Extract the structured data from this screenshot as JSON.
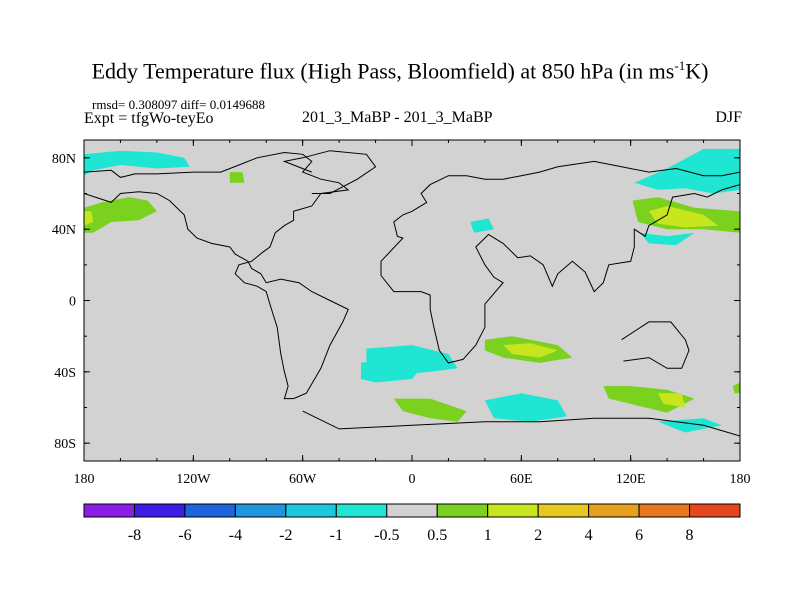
{
  "chart_data": {
    "type": "contour-map",
    "title_main": "Eddy Temperature flux (High Pass, Bloomfield) at 850 hPa (in ms",
    "title_sup": "-1",
    "title_end": "K)",
    "stats": "rmsd= 0.308097  diff= 0.0149688",
    "expt": "Expt = tfgWo-teyEo",
    "center_label": "201_3_MaBP - 201_3_MaBP",
    "season": "DJF",
    "xlim": [
      -180,
      180
    ],
    "ylim": [
      -90,
      90
    ],
    "x_ticks": [
      {
        "value": -180,
        "label": "180"
      },
      {
        "value": -120,
        "label": "120W"
      },
      {
        "value": -60,
        "label": "60W"
      },
      {
        "value": 0,
        "label": "0"
      },
      {
        "value": 60,
        "label": "60E"
      },
      {
        "value": 120,
        "label": "120E"
      },
      {
        "value": 180,
        "label": "180"
      }
    ],
    "y_ticks": [
      {
        "value": 80,
        "label": "80N"
      },
      {
        "value": 40,
        "label": "40N"
      },
      {
        "value": 0,
        "label": "0"
      },
      {
        "value": -40,
        "label": "40S"
      },
      {
        "value": -80,
        "label": "80S"
      }
    ],
    "colorbar": {
      "colors": [
        "#8a1ee6",
        "#3a1ee6",
        "#1e64dc",
        "#1e96dc",
        "#1ec8dc",
        "#1ee6d2",
        "#d2d2d2",
        "#7ad21e",
        "#c8e61e",
        "#e6c81e",
        "#e6a01e",
        "#e6781e",
        "#e6461e"
      ],
      "labels": [
        "-8",
        "-6",
        "-4",
        "-2",
        "-1",
        "-0.5",
        "0.5",
        "1",
        "2",
        "4",
        "6",
        "8"
      ]
    },
    "regions": [
      {
        "name": "north-pacific-east-cyan",
        "level": "-0.5",
        "pts": [
          [
            -180,
            82
          ],
          [
            -160,
            84
          ],
          [
            -140,
            83
          ],
          [
            -125,
            80
          ],
          [
            -122,
            75
          ],
          [
            -140,
            74
          ],
          [
            -160,
            76
          ],
          [
            -175,
            73
          ],
          [
            -180,
            70
          ]
        ]
      },
      {
        "name": "north-pacific-band-green",
        "level": "0.5",
        "pts": [
          [
            -180,
            52
          ],
          [
            -170,
            55
          ],
          [
            -155,
            58
          ],
          [
            -145,
            56
          ],
          [
            -140,
            50
          ],
          [
            -150,
            45
          ],
          [
            -165,
            44
          ],
          [
            -175,
            38
          ],
          [
            -180,
            38
          ]
        ]
      },
      {
        "name": "north-pacific-core-yellow",
        "level": "1",
        "pts": [
          [
            -180,
            50
          ],
          [
            -176,
            50
          ],
          [
            -175,
            44
          ],
          [
            -180,
            42
          ]
        ]
      },
      {
        "name": "kamchatka-green",
        "level": "0.5",
        "pts": [
          [
            -100,
            72
          ],
          [
            -93,
            72
          ],
          [
            -92,
            66
          ],
          [
            -100,
            66
          ]
        ]
      },
      {
        "name": "arctic-east-cyan",
        "level": "-0.5",
        "pts": [
          [
            122,
            66
          ],
          [
            140,
            74
          ],
          [
            160,
            85
          ],
          [
            180,
            85
          ],
          [
            180,
            62
          ],
          [
            165,
            60
          ],
          [
            150,
            63
          ],
          [
            135,
            62
          ]
        ]
      },
      {
        "name": "asia-pacific-green",
        "level": "0.5",
        "pts": [
          [
            121,
            56
          ],
          [
            135,
            58
          ],
          [
            155,
            52
          ],
          [
            180,
            50
          ],
          [
            180,
            38
          ],
          [
            160,
            40
          ],
          [
            140,
            40
          ],
          [
            124,
            44
          ]
        ]
      },
      {
        "name": "asia-pacific-core-yellow",
        "level": "1",
        "pts": [
          [
            130,
            50
          ],
          [
            140,
            53
          ],
          [
            160,
            48
          ],
          [
            168,
            42
          ],
          [
            150,
            41
          ],
          [
            135,
            43
          ]
        ]
      },
      {
        "name": "japan-cyan",
        "level": "-0.5",
        "pts": [
          [
            125,
            38
          ],
          [
            140,
            36
          ],
          [
            155,
            38
          ],
          [
            145,
            31
          ],
          [
            130,
            32
          ]
        ]
      },
      {
        "name": "iberia-cyan",
        "level": "-0.5",
        "pts": [
          [
            32,
            44
          ],
          [
            42,
            46
          ],
          [
            45,
            40
          ],
          [
            34,
            38
          ]
        ]
      },
      {
        "name": "south-indian-green",
        "level": "0.5",
        "pts": [
          [
            40,
            -22
          ],
          [
            55,
            -20
          ],
          [
            80,
            -25
          ],
          [
            88,
            -32
          ],
          [
            70,
            -35
          ],
          [
            50,
            -32
          ],
          [
            40,
            -28
          ]
        ]
      },
      {
        "name": "south-indian-core-yellow",
        "level": "1",
        "pts": [
          [
            50,
            -25
          ],
          [
            65,
            -24
          ],
          [
            80,
            -28
          ],
          [
            70,
            -32
          ],
          [
            55,
            -30
          ]
        ]
      },
      {
        "name": "south-atlantic-cyan",
        "level": "-0.5",
        "pts": [
          [
            -25,
            -27
          ],
          [
            0,
            -25
          ],
          [
            20,
            -30
          ],
          [
            25,
            -38
          ],
          [
            10,
            -40
          ],
          [
            -10,
            -42
          ],
          [
            -25,
            -40
          ]
        ]
      },
      {
        "name": "south-america-tip-cyan",
        "level": "-0.5",
        "pts": [
          [
            -28,
            -35
          ],
          [
            -10,
            -32
          ],
          [
            5,
            -38
          ],
          [
            0,
            -44
          ],
          [
            -20,
            -46
          ],
          [
            -28,
            -44
          ]
        ]
      },
      {
        "name": "south-atlantic-green",
        "level": "0.5",
        "pts": [
          [
            -10,
            -55
          ],
          [
            10,
            -55
          ],
          [
            30,
            -62
          ],
          [
            25,
            -68
          ],
          [
            10,
            -66
          ],
          [
            -5,
            -62
          ]
        ]
      },
      {
        "name": "south-atlantic-deep-cyan",
        "level": "-0.5",
        "pts": [
          [
            40,
            -56
          ],
          [
            60,
            -52
          ],
          [
            80,
            -56
          ],
          [
            85,
            -65
          ],
          [
            65,
            -68
          ],
          [
            45,
            -66
          ]
        ]
      },
      {
        "name": "south-ocean-green-east",
        "level": "0.5",
        "pts": [
          [
            105,
            -48
          ],
          [
            120,
            -48
          ],
          [
            140,
            -50
          ],
          [
            155,
            -55
          ],
          [
            140,
            -63
          ],
          [
            120,
            -58
          ],
          [
            108,
            -55
          ]
        ]
      },
      {
        "name": "south-ocean-core-yellow",
        "level": "1",
        "pts": [
          [
            135,
            -52
          ],
          [
            148,
            -52
          ],
          [
            150,
            -60
          ],
          [
            138,
            -58
          ]
        ]
      },
      {
        "name": "south-ocean-cyan-east",
        "level": "-0.5",
        "pts": [
          [
            135,
            -68
          ],
          [
            160,
            -66
          ],
          [
            170,
            -70
          ],
          [
            150,
            -74
          ]
        ]
      },
      {
        "name": "dateline-south-green",
        "level": "0.5",
        "pts": [
          [
            176,
            -48
          ],
          [
            180,
            -46
          ],
          [
            180,
            -52
          ],
          [
            177,
            -52
          ]
        ]
      }
    ],
    "outlines": [
      {
        "name": "americas-outline",
        "pts": [
          [
            -180,
            72
          ],
          [
            -165,
            73
          ],
          [
            -160,
            69
          ],
          [
            -152,
            71
          ],
          [
            -140,
            71
          ],
          [
            -120,
            72
          ],
          [
            -105,
            72
          ],
          [
            -95,
            76
          ],
          [
            -85,
            80
          ],
          [
            -70,
            83
          ],
          [
            -60,
            82
          ],
          [
            -55,
            78
          ],
          [
            -60,
            72
          ],
          [
            -50,
            68
          ],
          [
            -40,
            66
          ],
          [
            -35,
            62
          ],
          [
            -50,
            60
          ],
          [
            -55,
            53
          ],
          [
            -65,
            50
          ],
          [
            -65,
            45
          ],
          [
            -70,
            42
          ],
          [
            -75,
            38
          ],
          [
            -78,
            30
          ],
          [
            -82,
            27
          ],
          [
            -88,
            22
          ],
          [
            -95,
            20
          ],
          [
            -97,
            15
          ],
          [
            -92,
            10
          ],
          [
            -85,
            8
          ],
          [
            -80,
            5
          ],
          [
            -78,
            -2
          ],
          [
            -74,
            -15
          ],
          [
            -72,
            -30
          ],
          [
            -70,
            -40
          ],
          [
            -68,
            -48
          ],
          [
            -70,
            -55
          ],
          [
            -65,
            -55
          ],
          [
            -58,
            -52
          ],
          [
            -50,
            -38
          ],
          [
            -45,
            -25
          ],
          [
            -38,
            -12
          ],
          [
            -35,
            -5
          ],
          [
            -45,
            0
          ],
          [
            -55,
            5
          ],
          [
            -62,
            10
          ],
          [
            -72,
            12
          ],
          [
            -80,
            10
          ],
          [
            -83,
            15
          ],
          [
            -88,
            18
          ],
          [
            -90,
            22
          ],
          [
            -97,
            26
          ],
          [
            -100,
            30
          ],
          [
            -110,
            32
          ],
          [
            -118,
            35
          ],
          [
            -123,
            40
          ],
          [
            -125,
            48
          ],
          [
            -133,
            56
          ],
          [
            -140,
            60
          ],
          [
            -150,
            61
          ],
          [
            -160,
            60
          ],
          [
            -165,
            55
          ],
          [
            -180,
            60
          ]
        ]
      },
      {
        "name": "eurasia-africa-outline",
        "pts": [
          [
            180,
            72
          ],
          [
            170,
            70
          ],
          [
            160,
            70
          ],
          [
            145,
            74
          ],
          [
            130,
            72
          ],
          [
            115,
            75
          ],
          [
            100,
            78
          ],
          [
            80,
            75
          ],
          [
            70,
            72
          ],
          [
            60,
            70
          ],
          [
            50,
            68
          ],
          [
            40,
            68
          ],
          [
            30,
            70
          ],
          [
            20,
            70
          ],
          [
            10,
            65
          ],
          [
            5,
            60
          ],
          [
            8,
            55
          ],
          [
            0,
            50
          ],
          [
            -5,
            48
          ],
          [
            -10,
            44
          ],
          [
            -8,
            36
          ],
          [
            -5,
            35
          ],
          [
            -17,
            22
          ],
          [
            -17,
            14
          ],
          [
            -10,
            5
          ],
          [
            5,
            5
          ],
          [
            10,
            3
          ],
          [
            10,
            -5
          ],
          [
            12,
            -15
          ],
          [
            15,
            -28
          ],
          [
            20,
            -35
          ],
          [
            28,
            -33
          ],
          [
            35,
            -25
          ],
          [
            40,
            -15
          ],
          [
            40,
            -2
          ],
          [
            50,
            10
          ],
          [
            45,
            13
          ],
          [
            40,
            20
          ],
          [
            35,
            30
          ],
          [
            42,
            37
          ],
          [
            50,
            32
          ],
          [
            58,
            24
          ],
          [
            65,
            25
          ],
          [
            72,
            20
          ],
          [
            77,
            8
          ],
          [
            80,
            15
          ],
          [
            88,
            22
          ],
          [
            95,
            16
          ],
          [
            100,
            5
          ],
          [
            105,
            10
          ],
          [
            108,
            20
          ],
          [
            120,
            22
          ],
          [
            122,
            30
          ],
          [
            122,
            40
          ],
          [
            128,
            36
          ],
          [
            130,
            42
          ],
          [
            140,
            48
          ],
          [
            143,
            58
          ],
          [
            155,
            60
          ],
          [
            162,
            58
          ],
          [
            170,
            62
          ],
          [
            180,
            65
          ]
        ]
      },
      {
        "name": "antarctica-outline",
        "pts": [
          [
            -60,
            -62
          ],
          [
            -40,
            -72
          ],
          [
            0,
            -70
          ],
          [
            40,
            -68
          ],
          [
            70,
            -68
          ],
          [
            100,
            -66
          ],
          [
            130,
            -66
          ],
          [
            160,
            -70
          ],
          [
            180,
            -76
          ]
        ]
      },
      {
        "name": "australia-outline",
        "pts": [
          [
            115,
            -22
          ],
          [
            130,
            -12
          ],
          [
            142,
            -12
          ],
          [
            150,
            -22
          ],
          [
            152,
            -28
          ],
          [
            148,
            -38
          ],
          [
            140,
            -38
          ],
          [
            130,
            -32
          ],
          [
            116,
            -34
          ]
        ]
      },
      {
        "name": "greenland-outline",
        "pts": [
          [
            -55,
            60
          ],
          [
            -45,
            60
          ],
          [
            -30,
            68
          ],
          [
            -20,
            75
          ],
          [
            -25,
            82
          ],
          [
            -45,
            84
          ],
          [
            -60,
            80
          ],
          [
            -70,
            78
          ],
          [
            -55,
            72
          ]
        ]
      }
    ]
  }
}
